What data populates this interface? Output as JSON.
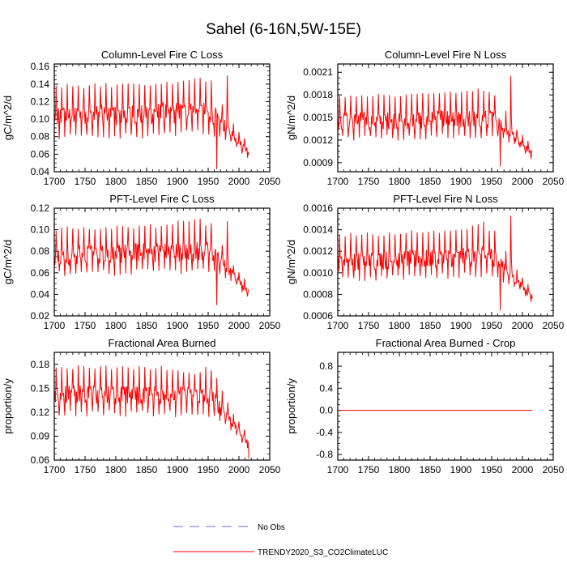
{
  "figure": {
    "title": "Sahel (6-16N,5W-15E)",
    "colors": {
      "model": "#ff0000",
      "obs": "#6a6ae6",
      "frame": "#000000"
    }
  },
  "chart_data": [
    {
      "type": "line",
      "title": "Column-Level Fire C Loss",
      "ylabel": "gC/m^2/d",
      "xlim": [
        1700,
        2050
      ],
      "ylim": [
        0.04,
        0.163
      ],
      "xticks": [
        1700,
        1750,
        1800,
        1850,
        1900,
        1950,
        2000,
        2050
      ],
      "yticks": [
        0.04,
        0.06,
        0.08,
        0.1,
        0.12,
        0.14,
        0.16
      ],
      "ytick_labels": [
        "0.04",
        "0.06",
        "0.08",
        "0.10",
        "0.12",
        "0.14",
        "0.16"
      ],
      "series": [
        {
          "name": "TRENDY2020_S3_CO2ClimateLUC",
          "x_range": [
            1700,
            2016
          ],
          "profile": {
            "base_early": 0.103,
            "base_1940": 0.108,
            "base_end": 0.062,
            "peak_early": 0.14,
            "peak_1940": 0.15,
            "trough_early": 0.075,
            "spike": [
              1981,
              0.15
            ],
            "min": [
              1964,
              0.043
            ]
          }
        }
      ]
    },
    {
      "type": "line",
      "title": "Column-Level Fire N Loss",
      "ylabel": "gN/m^2/d",
      "xlim": [
        1700,
        2050
      ],
      "ylim": [
        0.00078,
        0.00221
      ],
      "xticks": [
        1700,
        1750,
        1800,
        1850,
        1900,
        1950,
        2000,
        2050
      ],
      "yticks": [
        0.0009,
        0.0012,
        0.0015,
        0.0018,
        0.0021
      ],
      "ytick_labels": [
        "0.0009",
        "0.0012",
        "0.0015",
        "0.0018",
        "0.0021"
      ],
      "series": [
        {
          "name": "TRENDY2020_S3_CO2ClimateLUC",
          "x_range": [
            1700,
            2016
          ],
          "profile": {
            "base_early": 0.00145,
            "base_1940": 0.00148,
            "base_end": 0.00102,
            "peak_early": 0.00182,
            "peak_1940": 0.00188,
            "trough_early": 0.00118,
            "spike": [
              1981,
              0.00205
            ],
            "min": [
              1964,
              0.00085
            ]
          }
        }
      ]
    },
    {
      "type": "line",
      "title": "PFT-Level Fire C Loss",
      "ylabel": "gC/m^2/d",
      "xlim": [
        1700,
        2050
      ],
      "ylim": [
        0.02,
        0.12
      ],
      "xticks": [
        1700,
        1750,
        1800,
        1850,
        1900,
        1950,
        2000,
        2050
      ],
      "yticks": [
        0.02,
        0.04,
        0.06,
        0.08,
        0.1,
        0.12
      ],
      "ytick_labels": [
        "0.02",
        "0.04",
        "0.06",
        "0.08",
        "0.10",
        "0.12"
      ],
      "series": [
        {
          "name": "TRENDY2020_S3_CO2ClimateLUC",
          "x_range": [
            1700,
            2016
          ],
          "profile": {
            "base_early": 0.076,
            "base_1940": 0.08,
            "base_end": 0.042,
            "peak_early": 0.103,
            "peak_1940": 0.111,
            "trough_early": 0.055,
            "spike": [
              1981,
              0.108
            ],
            "min": [
              1964,
              0.03
            ]
          }
        }
      ]
    },
    {
      "type": "line",
      "title": "PFT-Level Fire N Loss",
      "ylabel": "gN/m^2/d",
      "xlim": [
        1700,
        2050
      ],
      "ylim": [
        0.0006,
        0.0016
      ],
      "xticks": [
        1700,
        1750,
        1800,
        1850,
        1900,
        1950,
        2000,
        2050
      ],
      "yticks": [
        0.0006,
        0.0008,
        0.001,
        0.0012,
        0.0014,
        0.0016
      ],
      "ytick_labels": [
        "0.0006",
        "0.0008",
        "0.0010",
        "0.0012",
        "0.0014",
        "0.0016"
      ],
      "series": [
        {
          "name": "TRENDY2020_S3_CO2ClimateLUC",
          "x_range": [
            1700,
            2016
          ],
          "profile": {
            "base_early": 0.0011,
            "base_1940": 0.00115,
            "base_end": 0.00077,
            "peak_early": 0.00137,
            "peak_1940": 0.00145,
            "trough_early": 0.0009,
            "spike": [
              1981,
              0.00153
            ],
            "min": [
              1964,
              0.00065
            ]
          }
        }
      ]
    },
    {
      "type": "line",
      "title": "Fractional Area Burned",
      "ylabel": "proportion/y",
      "xlim": [
        1700,
        2050
      ],
      "ylim": [
        0.06,
        0.195
      ],
      "xticks": [
        1700,
        1750,
        1800,
        1850,
        1900,
        1950,
        2000,
        2050
      ],
      "yticks": [
        0.06,
        0.09,
        0.12,
        0.15,
        0.18
      ],
      "ytick_labels": [
        "0.06",
        "0.09",
        "0.12",
        "0.15",
        "0.18"
      ],
      "series": [
        {
          "name": "TRENDY2020_S3_CO2ClimateLUC",
          "x_range": [
            1700,
            2016
          ],
          "profile": {
            "base_early": 0.142,
            "base_1940": 0.14,
            "base_end": 0.08,
            "peak_early": 0.18,
            "peak_1940": 0.172,
            "trough_early": 0.115,
            "spike": [
              1981,
              0.118
            ],
            "min": [
              2016,
              0.062
            ]
          }
        }
      ]
    },
    {
      "type": "line",
      "title": "Fractional Area Burned - Crop",
      "ylabel": "proportion/y",
      "xlim": [
        1700,
        2050
      ],
      "ylim": [
        -0.9,
        1.05
      ],
      "xticks": [
        1700,
        1750,
        1800,
        1850,
        1900,
        1950,
        2000,
        2050
      ],
      "yticks": [
        -0.8,
        -0.4,
        0.0,
        0.4,
        0.8
      ],
      "ytick_labels": [
        "-0.8",
        "-0.4",
        "0.0",
        "0.4",
        "0.8"
      ],
      "series": [
        {
          "name": "TRENDY2020_S3_CO2ClimateLUC",
          "x_range": [
            1700,
            2016
          ],
          "constant": 0.0
        }
      ]
    }
  ],
  "legend": {
    "items": [
      {
        "label": "No Obs",
        "style": "dashed",
        "color": "#6a6ae6"
      },
      {
        "label": "TRENDY2020_S3_CO2ClimateLUC",
        "style": "solid",
        "color": "#ff0000"
      }
    ]
  }
}
